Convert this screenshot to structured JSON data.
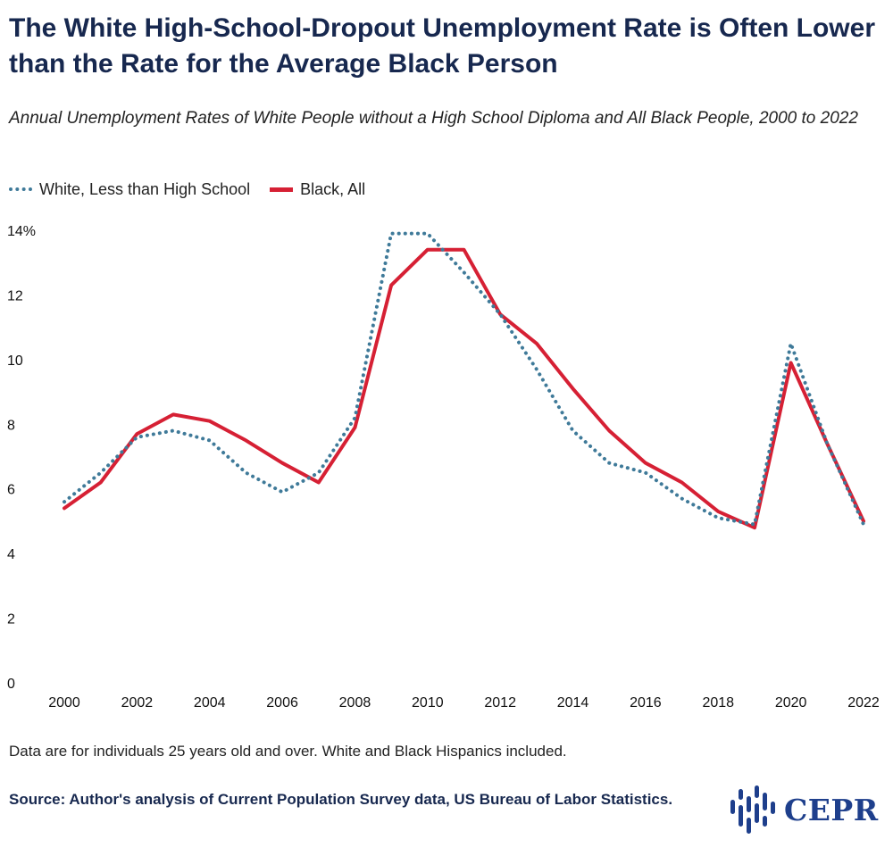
{
  "header": {
    "title": "The White High-School-Dropout Unemployment Rate is Often Lower than the Rate for the Average Black Person",
    "subtitle": "Annual Unemployment Rates of White People without a High School Diploma and All Black People, 2000 to 2022"
  },
  "footer": {
    "note": "Data are for individuals 25 years old and over. White and Black Hispanics included.",
    "source": "Source: Author's analysis of Current Population Survey data, US Bureau of Labor Statistics.",
    "logo_text": "CEPR"
  },
  "colors": {
    "white_series": "#3f7a99",
    "black_series": "#d62034",
    "title": "#17284f",
    "logo": "#1e3f8c"
  },
  "chart_data": {
    "type": "line",
    "x": [
      2000,
      2001,
      2002,
      2003,
      2004,
      2005,
      2006,
      2007,
      2008,
      2009,
      2010,
      2011,
      2012,
      2013,
      2014,
      2015,
      2016,
      2017,
      2018,
      2019,
      2020,
      2021,
      2022
    ],
    "series": [
      {
        "name": "White, Less than High School",
        "style": "dotted",
        "color": "#3f7a99",
        "values": [
          5.6,
          6.5,
          7.6,
          7.8,
          7.5,
          6.5,
          5.9,
          6.5,
          8.2,
          13.9,
          13.9,
          12.7,
          11.4,
          9.7,
          7.8,
          6.8,
          6.5,
          5.7,
          5.1,
          4.9,
          10.5,
          7.4,
          4.9
        ]
      },
      {
        "name": "Black, All",
        "style": "solid",
        "color": "#d62034",
        "values": [
          5.4,
          6.2,
          7.7,
          8.3,
          8.1,
          7.5,
          6.8,
          6.2,
          7.9,
          12.3,
          13.4,
          13.4,
          11.4,
          10.5,
          9.1,
          7.8,
          6.8,
          6.2,
          5.3,
          4.8,
          9.9,
          7.4,
          5.0
        ]
      }
    ],
    "x_ticks": [
      "2000",
      "2002",
      "2004",
      "2006",
      "2008",
      "2010",
      "2012",
      "2014",
      "2016",
      "2018",
      "2020",
      "2022"
    ],
    "y_ticks": [
      "0",
      "2",
      "4",
      "6",
      "8",
      "10",
      "12",
      "14%"
    ],
    "ylim": [
      0,
      14
    ],
    "xlabel": "",
    "ylabel": "",
    "grid": false,
    "legend_position": "top-left"
  }
}
